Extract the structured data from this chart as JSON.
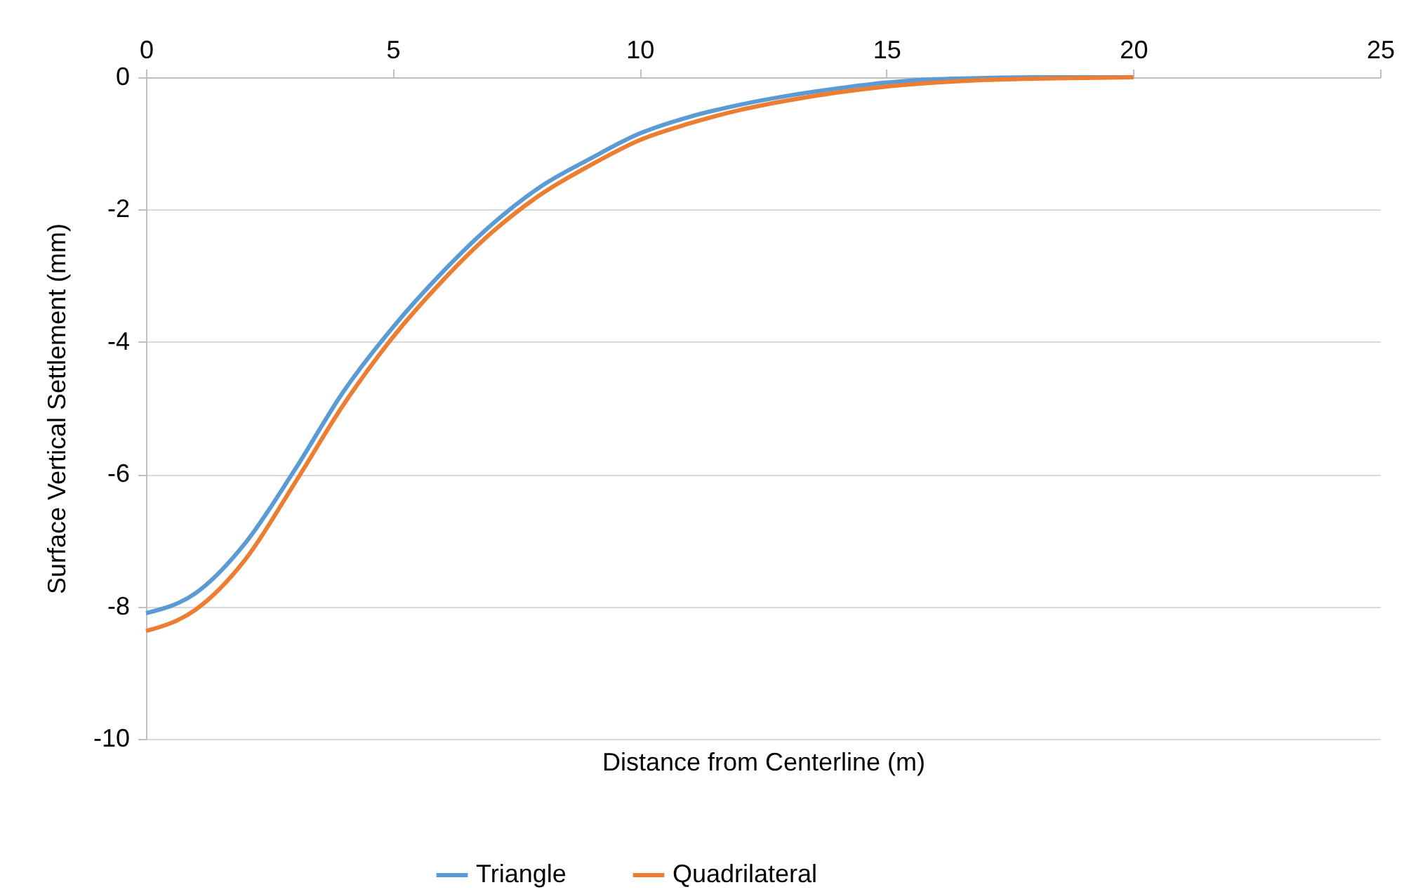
{
  "chart_data": {
    "type": "line",
    "xlabel": "Distance from Centerline (m)",
    "ylabel": "Surface Vertical Settlement (mm)",
    "x": [
      0,
      1,
      2,
      3,
      4,
      5,
      6,
      7,
      8,
      9,
      10,
      11,
      12,
      13,
      14,
      15,
      16,
      17,
      18,
      19,
      20
    ],
    "series": [
      {
        "name": "Triangle",
        "color": "#5b9bd5",
        "values": [
          -8.1,
          -7.8,
          -7.05,
          -5.95,
          -4.75,
          -3.78,
          -2.95,
          -2.23,
          -1.65,
          -1.23,
          -0.85,
          -0.6,
          -0.42,
          -0.28,
          -0.17,
          -0.08,
          -0.03,
          -0.01,
          0,
          0,
          0
        ]
      },
      {
        "name": "Quadrilateral",
        "color": "#ed7d31",
        "values": [
          -8.37,
          -8.05,
          -7.3,
          -6.15,
          -4.95,
          -3.93,
          -3.08,
          -2.35,
          -1.77,
          -1.33,
          -0.95,
          -0.7,
          -0.5,
          -0.35,
          -0.23,
          -0.14,
          -0.08,
          -0.04,
          -0.02,
          -0.01,
          0
        ]
      }
    ],
    "xlim": [
      0,
      25
    ],
    "xticks": [
      0,
      5,
      10,
      15,
      20,
      25
    ],
    "ylim": [
      -10,
      0
    ],
    "yticks": [
      -10,
      -8,
      -6,
      -4,
      -2,
      0
    ],
    "grid": "y",
    "legend": "bottom",
    "marker": "none",
    "line_style": "solid"
  }
}
